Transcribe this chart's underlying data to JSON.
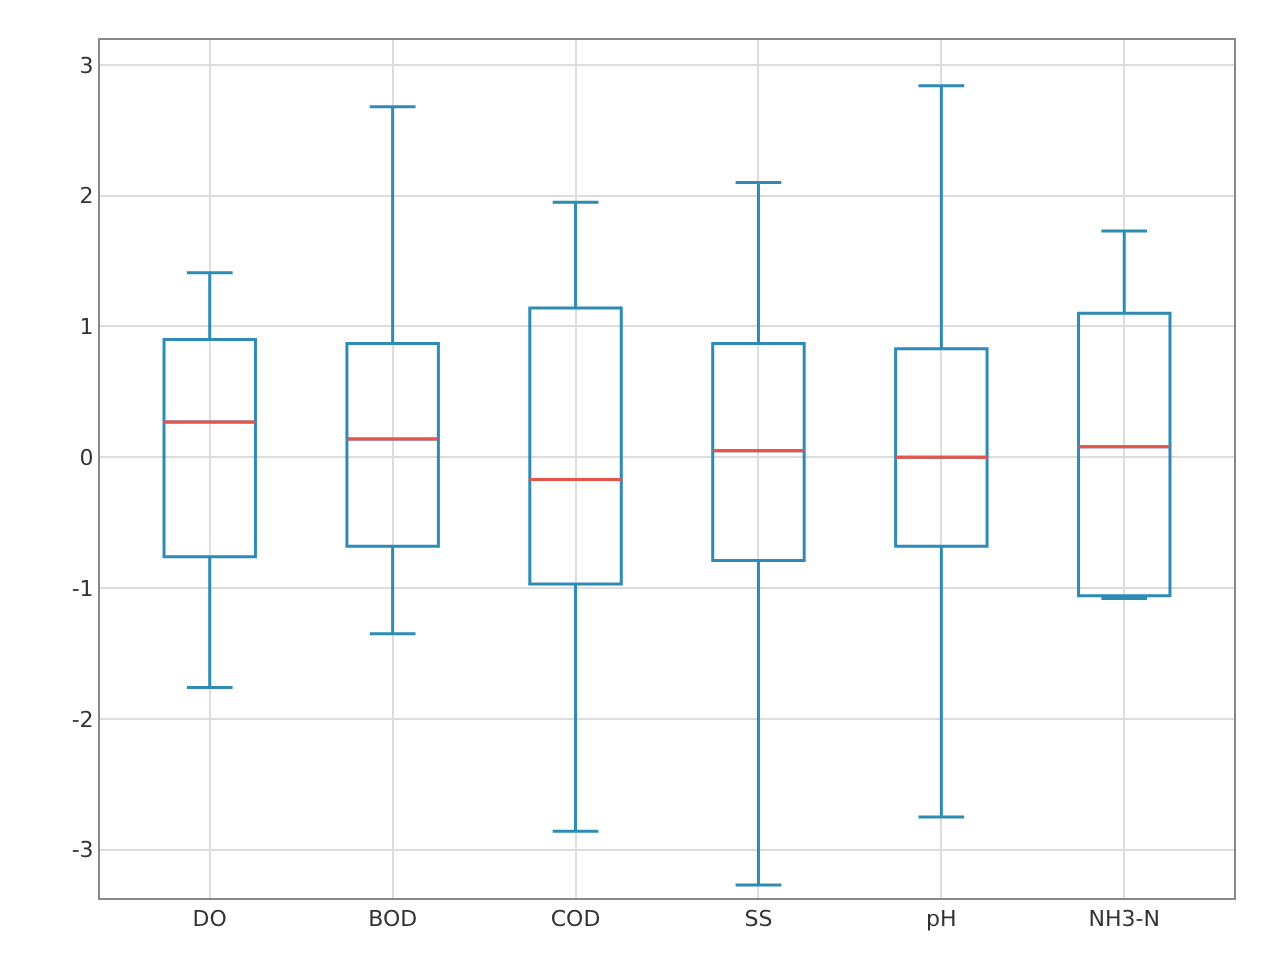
{
  "chart_data": {
    "type": "box",
    "categories": [
      "DO",
      "BOD",
      "COD",
      "SS",
      "pH",
      "NH3-N"
    ],
    "series": [
      {
        "color": "#2e8bb5",
        "boxes": [
          {
            "low": -1.76,
            "q1": -0.76,
            "median": 0.27,
            "q3": 0.9,
            "high": 1.41
          },
          {
            "low": -1.35,
            "q1": -0.68,
            "median": 0.14,
            "q3": 0.87,
            "high": 2.68
          },
          {
            "low": -2.86,
            "q1": -0.97,
            "median": -0.17,
            "q3": 1.14,
            "high": 1.95
          },
          {
            "low": -3.27,
            "q1": -0.79,
            "median": 0.05,
            "q3": 0.87,
            "high": 2.1
          },
          {
            "low": -2.75,
            "q1": -0.68,
            "median": 0.0,
            "q3": 0.83,
            "high": 2.84
          },
          {
            "low": -1.08,
            "q1": -1.06,
            "median": 0.08,
            "q3": 1.1,
            "high": 1.73
          }
        ]
      }
    ],
    "ylim": [
      -3.37,
      3.19
    ],
    "yticks": [
      -3,
      -2,
      -1,
      0,
      1,
      2,
      3
    ],
    "grid": true
  }
}
